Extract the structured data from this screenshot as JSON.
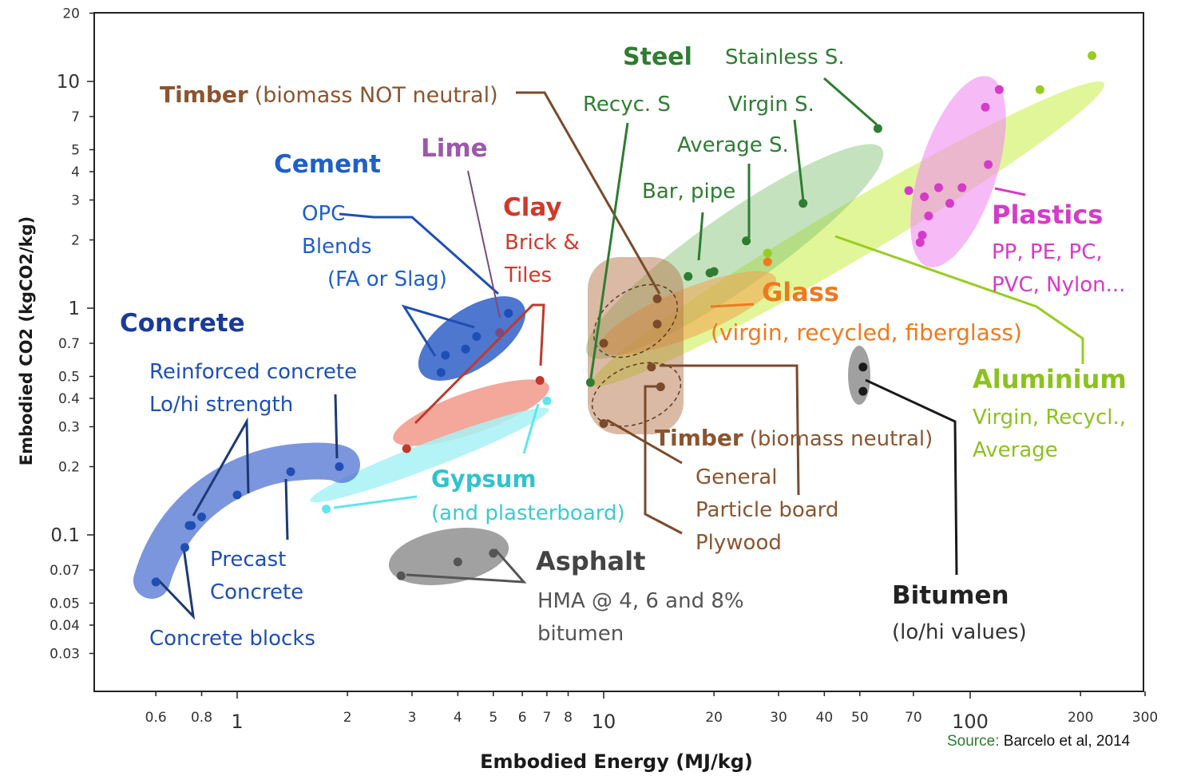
{
  "chart_data": {
    "type": "scatter",
    "xlabel": "Embodied Energy (MJ/kg)",
    "ylabel": "Embodied CO2 (kgCO2/kg)",
    "x_scale": "log",
    "y_scale": "log",
    "xlim": [
      0.4,
      300
    ],
    "ylim": [
      0.02,
      20
    ],
    "x_ticks": [
      {
        "v": 0.6,
        "t": "0.6",
        "major": false
      },
      {
        "v": 0.8,
        "t": "0.8",
        "major": false
      },
      {
        "v": 1,
        "t": "1",
        "major": true
      },
      {
        "v": 2,
        "t": "2",
        "major": false
      },
      {
        "v": 3,
        "t": "3",
        "major": false
      },
      {
        "v": 4,
        "t": "4",
        "major": false
      },
      {
        "v": 5,
        "t": "5",
        "major": false
      },
      {
        "v": 6,
        "t": "6",
        "major": false
      },
      {
        "v": 7,
        "t": "7",
        "major": false
      },
      {
        "v": 8,
        "t": "8",
        "major": false
      },
      {
        "v": 10,
        "t": "10",
        "major": true
      },
      {
        "v": 20,
        "t": "20",
        "major": false
      },
      {
        "v": 30,
        "t": "30",
        "major": false
      },
      {
        "v": 40,
        "t": "40",
        "major": false
      },
      {
        "v": 50,
        "t": "50",
        "major": false
      },
      {
        "v": 70,
        "t": "70",
        "major": false
      },
      {
        "v": 100,
        "t": "100",
        "major": true
      },
      {
        "v": 200,
        "t": "200",
        "major": false
      },
      {
        "v": 300,
        "t": "300",
        "major": false
      }
    ],
    "y_ticks": [
      {
        "v": 20,
        "t": "20",
        "major": false
      },
      {
        "v": 10,
        "t": "10",
        "major": true
      },
      {
        "v": 7,
        "t": "7",
        "major": false
      },
      {
        "v": 5,
        "t": "5",
        "major": false
      },
      {
        "v": 4,
        "t": "4",
        "major": false
      },
      {
        "v": 3,
        "t": "3",
        "major": false
      },
      {
        "v": 2,
        "t": "2",
        "major": false
      },
      {
        "v": 1,
        "t": "1",
        "major": true
      },
      {
        "v": 0.7,
        "t": "0.7",
        "major": false
      },
      {
        "v": 0.5,
        "t": "0.5",
        "major": false
      },
      {
        "v": 0.4,
        "t": "0.4",
        "major": false
      },
      {
        "v": 0.3,
        "t": "0.3",
        "major": false
      },
      {
        "v": 0.2,
        "t": "0.2",
        "major": false
      },
      {
        "v": 0.1,
        "t": "0.1",
        "major": true
      },
      {
        "v": 0.07,
        "t": "0.07",
        "major": false
      },
      {
        "v": 0.05,
        "t": "0.05",
        "major": false
      },
      {
        "v": 0.04,
        "t": "0.04",
        "major": false
      },
      {
        "v": 0.03,
        "t": "0.03",
        "major": false
      }
    ],
    "source": {
      "prefix": "Source:",
      "text": "Barcelo et al, 2014"
    },
    "groups": [
      {
        "key": "concrete",
        "color": "#1f4fb4",
        "points": [
          [
            0.6,
            0.062
          ],
          [
            0.72,
            0.088
          ],
          [
            0.74,
            0.11
          ],
          [
            0.75,
            0.11
          ],
          [
            0.8,
            0.12
          ],
          [
            1.0,
            0.15
          ],
          [
            1.4,
            0.19
          ],
          [
            1.9,
            0.2
          ]
        ]
      },
      {
        "key": "cement",
        "color": "#1f4fb4",
        "points": [
          [
            3.6,
            0.52
          ],
          [
            3.7,
            0.62
          ],
          [
            4.2,
            0.66
          ],
          [
            4.5,
            0.75
          ],
          [
            5.5,
            0.95
          ]
        ]
      },
      {
        "key": "lime",
        "color": "#7a4a80",
        "points": [
          [
            5.2,
            0.78
          ]
        ]
      },
      {
        "key": "clay",
        "color": "#c0392b",
        "points": [
          [
            2.9,
            0.24
          ],
          [
            6.7,
            0.48
          ]
        ]
      },
      {
        "key": "gypsum",
        "color": "#5ee6ee",
        "points": [
          [
            1.75,
            0.13
          ],
          [
            7.0,
            0.39
          ]
        ]
      },
      {
        "key": "asphalt",
        "color": "#555555",
        "points": [
          [
            2.8,
            0.066
          ],
          [
            4.0,
            0.076
          ],
          [
            5.0,
            0.083
          ]
        ]
      },
      {
        "key": "timber",
        "color": "#7a4a2a",
        "points": [
          [
            10.0,
            0.7
          ],
          [
            14.0,
            0.85
          ],
          [
            14.0,
            1.1
          ],
          [
            13.5,
            0.55
          ],
          [
            14.3,
            0.45
          ],
          [
            10.0,
            0.31
          ]
        ]
      },
      {
        "key": "steel",
        "color": "#2e7d32",
        "points": [
          [
            9.2,
            0.47
          ],
          [
            17.0,
            1.38
          ],
          [
            19.5,
            1.43
          ],
          [
            20.0,
            1.45
          ],
          [
            24.5,
            1.98
          ],
          [
            35.0,
            2.9
          ],
          [
            56.0,
            6.2
          ]
        ]
      },
      {
        "key": "glass",
        "color": "#ee7a20",
        "points": [
          [
            28.0,
            1.6
          ]
        ]
      },
      {
        "key": "aluminium",
        "color": "#98cc22",
        "points": [
          [
            28.0,
            1.75
          ],
          [
            155.0,
            9.2
          ],
          [
            215.0,
            13.0
          ]
        ]
      },
      {
        "key": "plastics",
        "color": "#d63ac8",
        "points": [
          [
            68.0,
            3.3
          ],
          [
            75.0,
            3.1
          ],
          [
            77.0,
            2.55
          ],
          [
            74.0,
            2.1
          ],
          [
            73.0,
            1.95
          ],
          [
            82.0,
            3.4
          ],
          [
            88.0,
            2.9
          ],
          [
            95.0,
            3.4
          ],
          [
            112.0,
            4.3
          ],
          [
            110.0,
            7.7
          ],
          [
            120.0,
            9.2
          ]
        ]
      },
      {
        "key": "bitumen",
        "color": "#1a1a1a",
        "points": [
          [
            51.0,
            0.55
          ],
          [
            51.0,
            0.43
          ]
        ]
      }
    ]
  },
  "labels": {
    "timber_nn_bold": "Timber",
    "timber_nn_rest": "(biomass NOT neutral)",
    "cement": "Cement",
    "opc": "OPC",
    "blends": "Blends",
    "fa_slag": "(FA or Slag)",
    "lime": "Lime",
    "clay": "Clay",
    "brick": "Brick &",
    "tiles": "Tiles",
    "concrete": "Concrete",
    "reinforced": "Reinforced concrete",
    "lohi_strength": "Lo/hi strength",
    "precast": "Precast",
    "precast2": "Concrete",
    "blocks": "Concrete blocks",
    "gypsum": "Gypsum",
    "plasterboard": "(and plasterboard)",
    "asphalt": "Asphalt",
    "hma": "HMA @ 4, 6 and 8%",
    "bitumen_lc": "bitumen",
    "steel": "Steel",
    "recyc_s": "Recyc. S",
    "stainless": "Stainless S.",
    "virgin_s": "Virgin S.",
    "average_s": "Average S.",
    "bar_pipe": "Bar, pipe",
    "glass": "Glass",
    "glass_sub": "(virgin, recycled, fiberglass)",
    "plastics": "Plastics",
    "plastics_sub1": "PP, PE, PC,",
    "plastics_sub2": "PVC, Nylon...",
    "aluminium": "Aluminium",
    "alu_sub1": "Virgin, Recycl.,",
    "alu_sub2": "Average",
    "timber_n_bold": "Timber",
    "timber_n_rest": "(biomass neutral)",
    "general": "General",
    "particle": "Particle board",
    "plywood": "Plywood",
    "bitumen": "Bitumen",
    "lohi_values": "(lo/hi values)"
  }
}
